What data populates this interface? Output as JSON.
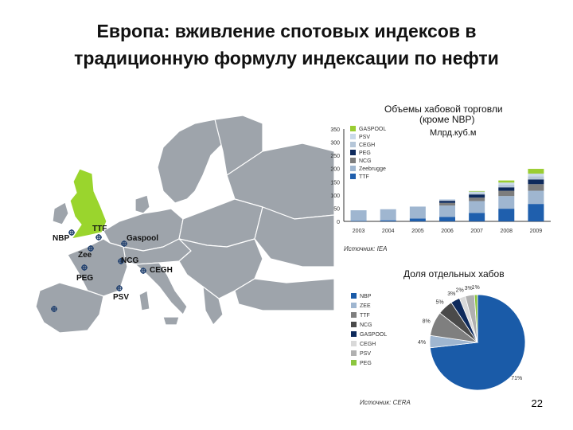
{
  "slide": {
    "title_line1": "Европа: вживление спотовых индексов в",
    "title_line2": "традиционную формулу индексации по нефти",
    "page_number": "22"
  },
  "map": {
    "hub_labels": [
      "NBP",
      "TTF",
      "Gaspool",
      "Zee",
      "NCG",
      "CEGH",
      "PEG",
      "PSV"
    ],
    "colors": {
      "land": "#9ea4ab",
      "border": "#ffffff",
      "uk_highlight": "#9ad52d",
      "sea": "#ffffff"
    }
  },
  "chart_data": [
    {
      "type": "bar",
      "subtype": "stacked",
      "title": "Объемы хабовой торговли",
      "subtitle": "(кроме NBP)",
      "ylabel": "Млрд.куб.м",
      "source": "Источник: IEA",
      "categories": [
        "2003",
        "2004",
        "2005",
        "2006",
        "2007",
        "2008",
        "2009"
      ],
      "ylim": [
        0,
        350
      ],
      "yticks": [
        "0",
        "50",
        "100",
        "150",
        "200",
        "250",
        "300",
        "350"
      ],
      "legend_position": "top-left",
      "series": [
        {
          "name": "GASPOOL",
          "color": "#9acd32",
          "values": [
            0,
            0,
            0,
            0,
            2,
            8,
            18
          ]
        },
        {
          "name": "PSV",
          "color": "#c9d9ea",
          "values": [
            0,
            0,
            0,
            3,
            6,
            8,
            10
          ]
        },
        {
          "name": "CEGH",
          "color": "#b5c6d8",
          "values": [
            0,
            0,
            0,
            3,
            5,
            10,
            12
          ]
        },
        {
          "name": "PEG",
          "color": "#0e2a5c",
          "values": [
            0,
            0,
            0,
            8,
            12,
            13,
            18
          ]
        },
        {
          "name": "NCG",
          "color": "#7d7d7d",
          "values": [
            0,
            0,
            0,
            10,
            13,
            20,
            25
          ]
        },
        {
          "name": "Zeebrugge",
          "color": "#9fb6d0",
          "values": [
            40,
            42,
            45,
            43,
            45,
            48,
            50
          ]
        },
        {
          "name": "TTF",
          "color": "#1f5fad",
          "values": [
            2,
            4,
            11,
            17,
            32,
            48,
            66
          ]
        }
      ]
    },
    {
      "type": "pie",
      "title": "Доля отдельных хабов",
      "source": "Источник: CERA",
      "legend_position": "left",
      "slices": [
        {
          "name": "NBP",
          "value": 71,
          "label": "71%",
          "color": "#1a5ba8"
        },
        {
          "name": "ZEE",
          "value": 4,
          "label": "4%",
          "color": "#9fb6d0"
        },
        {
          "name": "TTF",
          "value": 8,
          "label": "8%",
          "color": "#7f7f7f"
        },
        {
          "name": "NCG",
          "value": 5,
          "label": "5%",
          "color": "#4a4a4a"
        },
        {
          "name": "GASPOOL",
          "value": 3,
          "label": "3%",
          "color": "#0e2a5c"
        },
        {
          "name": "CEGH",
          "value": 2,
          "label": "2%",
          "color": "#d9d9d9"
        },
        {
          "name": "PSV",
          "value": 3,
          "label": "3%",
          "color": "#b0b0b0"
        },
        {
          "name": "PEG",
          "value": 1,
          "label": "1%",
          "color": "#8cc63f"
        }
      ]
    }
  ]
}
